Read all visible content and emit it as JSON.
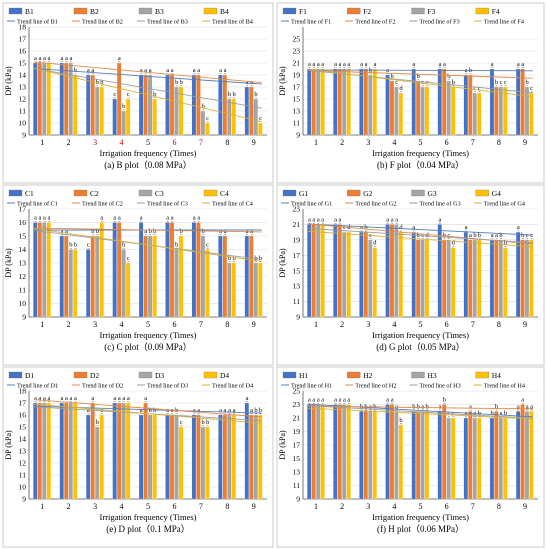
{
  "figure": {
    "series_colors": [
      "#4472C4",
      "#ED7D31",
      "#A5A5A5",
      "#FFC000"
    ],
    "trend_colors": [
      "#5B7DB5",
      "#E08A4A",
      "#9E9E9E",
      "#D6B040"
    ]
  },
  "chart_data": [
    {
      "type": "bar",
      "panel": "a",
      "caption": "(a) B plot（0.08 MPa）",
      "xlabel": "Irrigation frequency (Times)",
      "ylabel": "DP (kPa)",
      "ylim": [
        9,
        18
      ],
      "yticks": [
        9,
        10,
        11,
        12,
        13,
        14,
        15,
        16,
        17,
        18
      ],
      "categories": [
        "1",
        "2",
        "3",
        "4",
        "5",
        "6",
        "7",
        "8",
        "9"
      ],
      "category_label_colors": [
        "#000000",
        "#000000",
        "#C00000",
        "#C00000",
        "#000000",
        "#C00000",
        "#C00000",
        "#000000",
        "#000000"
      ],
      "legend": [
        "B1",
        "B2",
        "B3",
        "B4"
      ],
      "trend_legend": [
        "Trend line of B1",
        "Trend line of B2",
        "Trend line of B3",
        "Trend line of B4"
      ],
      "series": [
        {
          "name": "B1",
          "values": [
            15,
            15,
            14,
            12,
            14,
            14,
            14,
            14,
            13
          ]
        },
        {
          "name": "B2",
          "values": [
            15,
            15,
            14,
            15,
            14,
            14,
            14,
            14,
            13
          ]
        },
        {
          "name": "B3",
          "values": [
            15,
            15,
            13,
            11,
            14,
            13,
            11,
            12,
            12
          ]
        },
        {
          "name": "B4",
          "values": [
            15,
            14,
            13,
            12,
            12,
            13,
            10,
            12,
            10
          ]
        }
      ],
      "labels": [
        [
          "a",
          "a",
          "a",
          "a"
        ],
        [
          "a",
          "a",
          "a",
          "b"
        ],
        [
          "a",
          "a",
          "b",
          "b"
        ],
        [
          "c",
          "a",
          "b",
          "c"
        ],
        [
          "a",
          "a",
          "a",
          "b"
        ],
        [
          "a",
          "a",
          "b",
          "b"
        ],
        [
          "a",
          "a",
          "b",
          "c"
        ],
        [
          "a",
          "a",
          "b",
          "b"
        ],
        [
          "a",
          "a",
          "b",
          "c"
        ]
      ]
    },
    {
      "type": "bar",
      "panel": "b",
      "caption": "(b) F plot（0.04 MPa）",
      "xlabel": "Irrigation frequency (Times)",
      "ylabel": "DP (kPa)",
      "ylim": [
        9,
        27
      ],
      "yticks": [
        9,
        11,
        13,
        15,
        17,
        19,
        21,
        23,
        25
      ],
      "categories": [
        "1",
        "2",
        "3",
        "4",
        "5",
        "6",
        "7",
        "8",
        "9"
      ],
      "category_label_colors": [
        "#000000",
        "#000000",
        "#000000",
        "#000000",
        "#000000",
        "#000000",
        "#000000",
        "#000000",
        "#000000"
      ],
      "legend": [
        "F1",
        "F2",
        "F3",
        "F4"
      ],
      "trend_legend": [
        "Trend line of F1",
        "Trend line of F2",
        "Trend line of F3",
        "Trend line of F4"
      ],
      "series": [
        {
          "name": "F1",
          "values": [
            20,
            20,
            20,
            19,
            20,
            20,
            19,
            20,
            20
          ]
        },
        {
          "name": "F2",
          "values": [
            20,
            20,
            20,
            18,
            18,
            20,
            19,
            17,
            20
          ]
        },
        {
          "name": "F3",
          "values": [
            20,
            20,
            19,
            17,
            17,
            18,
            16,
            17,
            17
          ]
        },
        {
          "name": "F4",
          "values": [
            20,
            20,
            20,
            16,
            17,
            17,
            16,
            17,
            16
          ]
        }
      ],
      "labels": [
        [
          "a",
          "a",
          "a",
          "a"
        ],
        [
          "a",
          "a",
          "a",
          "a"
        ],
        [
          "a",
          "a",
          "b",
          "a"
        ],
        [
          "a",
          "b",
          "c",
          "d"
        ],
        [
          "a",
          "b",
          "c",
          "c"
        ],
        [
          "a",
          "a",
          "b",
          "b"
        ],
        [
          "a",
          "b",
          "c",
          "c"
        ],
        [
          "a",
          "b",
          "c",
          "c"
        ],
        [
          "a",
          "a",
          "b",
          "c"
        ]
      ]
    },
    {
      "type": "bar",
      "panel": "c",
      "caption": "(c) C plot（0.09 MPa）",
      "xlabel": "Irrigation frequency (Times)",
      "ylabel": "DP (kPa)",
      "ylim": [
        9,
        17
      ],
      "yticks": [
        9,
        10,
        11,
        12,
        13,
        14,
        15,
        16,
        17
      ],
      "categories": [
        "1",
        "2",
        "3",
        "4",
        "5",
        "6",
        "7",
        "8",
        "9"
      ],
      "category_label_colors": [
        "#000000",
        "#000000",
        "#000000",
        "#000000",
        "#000000",
        "#000000",
        "#000000",
        "#000000",
        "#000000"
      ],
      "legend": [
        "C1",
        "C2",
        "C3",
        "C4"
      ],
      "trend_legend": [
        "Trend line of C1",
        "Trend line of C2",
        "Trend line of C3",
        "Trend line of C4"
      ],
      "series": [
        {
          "name": "C1",
          "values": [
            16,
            15,
            14,
            16,
            16,
            16,
            16,
            15,
            15
          ]
        },
        {
          "name": "C2",
          "values": [
            16,
            15,
            15,
            16,
            15,
            16,
            16,
            15,
            15
          ]
        },
        {
          "name": "C3",
          "values": [
            16,
            14,
            15,
            14,
            15,
            14,
            15,
            13,
            13
          ]
        },
        {
          "name": "C4",
          "values": [
            16,
            14,
            16,
            13,
            15,
            15,
            14,
            13,
            13
          ]
        }
      ],
      "labels": [
        [
          "a",
          "a",
          "a",
          "a"
        ],
        [
          "a",
          "a",
          "b",
          "b"
        ],
        [
          "c",
          "b",
          "b",
          "a"
        ],
        [
          "a",
          "a",
          "b",
          "c"
        ],
        [
          "a",
          "a",
          "b",
          "b"
        ],
        [
          "a",
          "a",
          "b",
          "b"
        ],
        [
          "a",
          "a",
          "b",
          "c"
        ],
        [
          "a",
          "a",
          "b",
          "b"
        ],
        [
          "a",
          "a",
          "b",
          "b"
        ]
      ]
    },
    {
      "type": "bar",
      "panel": "d",
      "caption": "(d) G plot（0.05 MPa）",
      "xlabel": "Irrigation frequency (Times)",
      "ylabel": "DP (kPa)",
      "ylim": [
        9,
        23
      ],
      "yticks": [
        9,
        11,
        13,
        15,
        17,
        19,
        21,
        23
      ],
      "categories": [
        "1",
        "2",
        "3",
        "4",
        "5",
        "6",
        "7",
        "8",
        "9"
      ],
      "category_label_colors": [
        "#000000",
        "#000000",
        "#000000",
        "#000000",
        "#000000",
        "#000000",
        "#000000",
        "#000000",
        "#000000"
      ],
      "legend": [
        "G1",
        "G2",
        "G3",
        "G4"
      ],
      "trend_legend": [
        "Trend line of G1",
        "Trend line of G2",
        "Trend line of G3",
        "Trend line of G4"
      ],
      "series": [
        {
          "name": "G1",
          "values": [
            21,
            21,
            20,
            21,
            20,
            21,
            20,
            19,
            20
          ]
        },
        {
          "name": "G2",
          "values": [
            21,
            21,
            20,
            21,
            19,
            19,
            19,
            19,
            19
          ]
        },
        {
          "name": "G3",
          "values": [
            21,
            20,
            19,
            21,
            19,
            19,
            19,
            19,
            19
          ]
        },
        {
          "name": "G4",
          "values": [
            21,
            20,
            18,
            20,
            19,
            18,
            19,
            18,
            19
          ]
        }
      ],
      "labels": [
        [
          "a",
          "a",
          "a",
          "a"
        ],
        [
          "a",
          "a",
          "c",
          "d"
        ],
        [
          "a",
          "b",
          "c",
          "d"
        ],
        [
          "a",
          "a",
          "a",
          "d"
        ],
        [
          "a",
          "b",
          "c",
          "d"
        ],
        [
          "a",
          "b",
          "c",
          "d"
        ],
        [
          "a",
          "a",
          "b",
          "b"
        ],
        [
          "a",
          "a",
          "b",
          "b"
        ],
        [
          "a",
          "b",
          "c",
          "c"
        ]
      ]
    },
    {
      "type": "bar",
      "panel": "e",
      "caption": "(e) D plot（0.1 MPa）",
      "xlabel": "Irrigation frequency (Times)",
      "ylabel": "DP (kPa)",
      "ylim": [
        9,
        18
      ],
      "yticks": [
        9,
        10,
        11,
        12,
        13,
        14,
        15,
        16,
        17,
        18
      ],
      "categories": [
        "1",
        "2",
        "3",
        "4",
        "5",
        "6",
        "7",
        "8",
        "9"
      ],
      "category_label_colors": [
        "#000000",
        "#000000",
        "#000000",
        "#000000",
        "#000000",
        "#000000",
        "#000000",
        "#000000",
        "#000000"
      ],
      "legend": [
        "D1",
        "D2",
        "D3",
        "D4"
      ],
      "trend_legend": [
        "Trend line of D1",
        "Trend line of D2",
        "Trend line of D3",
        "Trend line of D4"
      ],
      "series": [
        {
          "name": "D1",
          "values": [
            17,
            17,
            16,
            17,
            16,
            16,
            16,
            16,
            17
          ]
        },
        {
          "name": "D2",
          "values": [
            17,
            17,
            17,
            17,
            17,
            16,
            16,
            16,
            16
          ]
        },
        {
          "name": "D3",
          "values": [
            17,
            17,
            15,
            17,
            16,
            16,
            15,
            16,
            16
          ]
        },
        {
          "name": "D4",
          "values": [
            17,
            17,
            16,
            17,
            16,
            15,
            15,
            16,
            16
          ]
        }
      ],
      "labels": [
        [
          "a",
          "a",
          "a",
          "a"
        ],
        [
          "a",
          "a",
          "a",
          "a"
        ],
        [
          "a",
          "a",
          "b",
          "c"
        ],
        [
          "a",
          "a",
          "a",
          "a"
        ],
        [
          "a",
          "a",
          "b",
          "b"
        ],
        [
          "a",
          "a",
          "b",
          "c"
        ],
        [
          "a",
          "a",
          "b",
          "b"
        ],
        [
          "a",
          "a",
          "a",
          "a"
        ],
        [
          "a",
          "a",
          "b",
          "b"
        ]
      ]
    },
    {
      "type": "bar",
      "panel": "f",
      "caption": "(f) H plot（0.06 MPa）",
      "xlabel": "Irrigation frequency (Times)",
      "ylabel": "DP (kPa)",
      "ylim": [
        9,
        25
      ],
      "yticks": [
        9,
        11,
        13,
        15,
        17,
        19,
        21,
        23,
        25
      ],
      "categories": [
        "1",
        "2",
        "3",
        "4",
        "5",
        "6",
        "7",
        "8",
        "9"
      ],
      "category_label_colors": [
        "#000000",
        "#000000",
        "#000000",
        "#000000",
        "#000000",
        "#000000",
        "#000000",
        "#000000",
        "#000000"
      ],
      "legend": [
        "H1",
        "H2",
        "H3",
        "H4"
      ],
      "trend_legend": [
        "Trend line of H1",
        "Trend line of H2",
        "Trend line of H3",
        "Trend line of H4"
      ],
      "series": [
        {
          "name": "H1",
          "values": [
            23,
            23,
            22,
            23,
            22,
            22,
            21,
            21,
            22
          ]
        },
        {
          "name": "H2",
          "values": [
            23,
            23,
            22,
            23,
            22,
            23,
            22,
            22,
            23
          ]
        },
        {
          "name": "H3",
          "values": [
            23,
            23,
            22,
            22,
            22,
            21,
            21,
            21,
            22
          ]
        },
        {
          "name": "H4",
          "values": [
            23,
            23,
            22,
            20,
            22,
            21,
            21,
            21,
            22
          ]
        }
      ],
      "labels": [
        [
          "a",
          "a",
          "a",
          "a"
        ],
        [
          "a",
          "a",
          "a",
          "a"
        ],
        [
          "b",
          "b",
          "a",
          "b"
        ],
        [
          "a",
          "a",
          "a",
          "b"
        ],
        [
          "b",
          "b",
          "a",
          "b"
        ],
        [
          "a",
          "b",
          "c",
          "c"
        ],
        [
          "a",
          "a",
          "a",
          "b"
        ],
        [
          "b",
          "b",
          "a",
          "b"
        ],
        [
          "a",
          "a",
          "a",
          "a"
        ]
      ]
    }
  ]
}
